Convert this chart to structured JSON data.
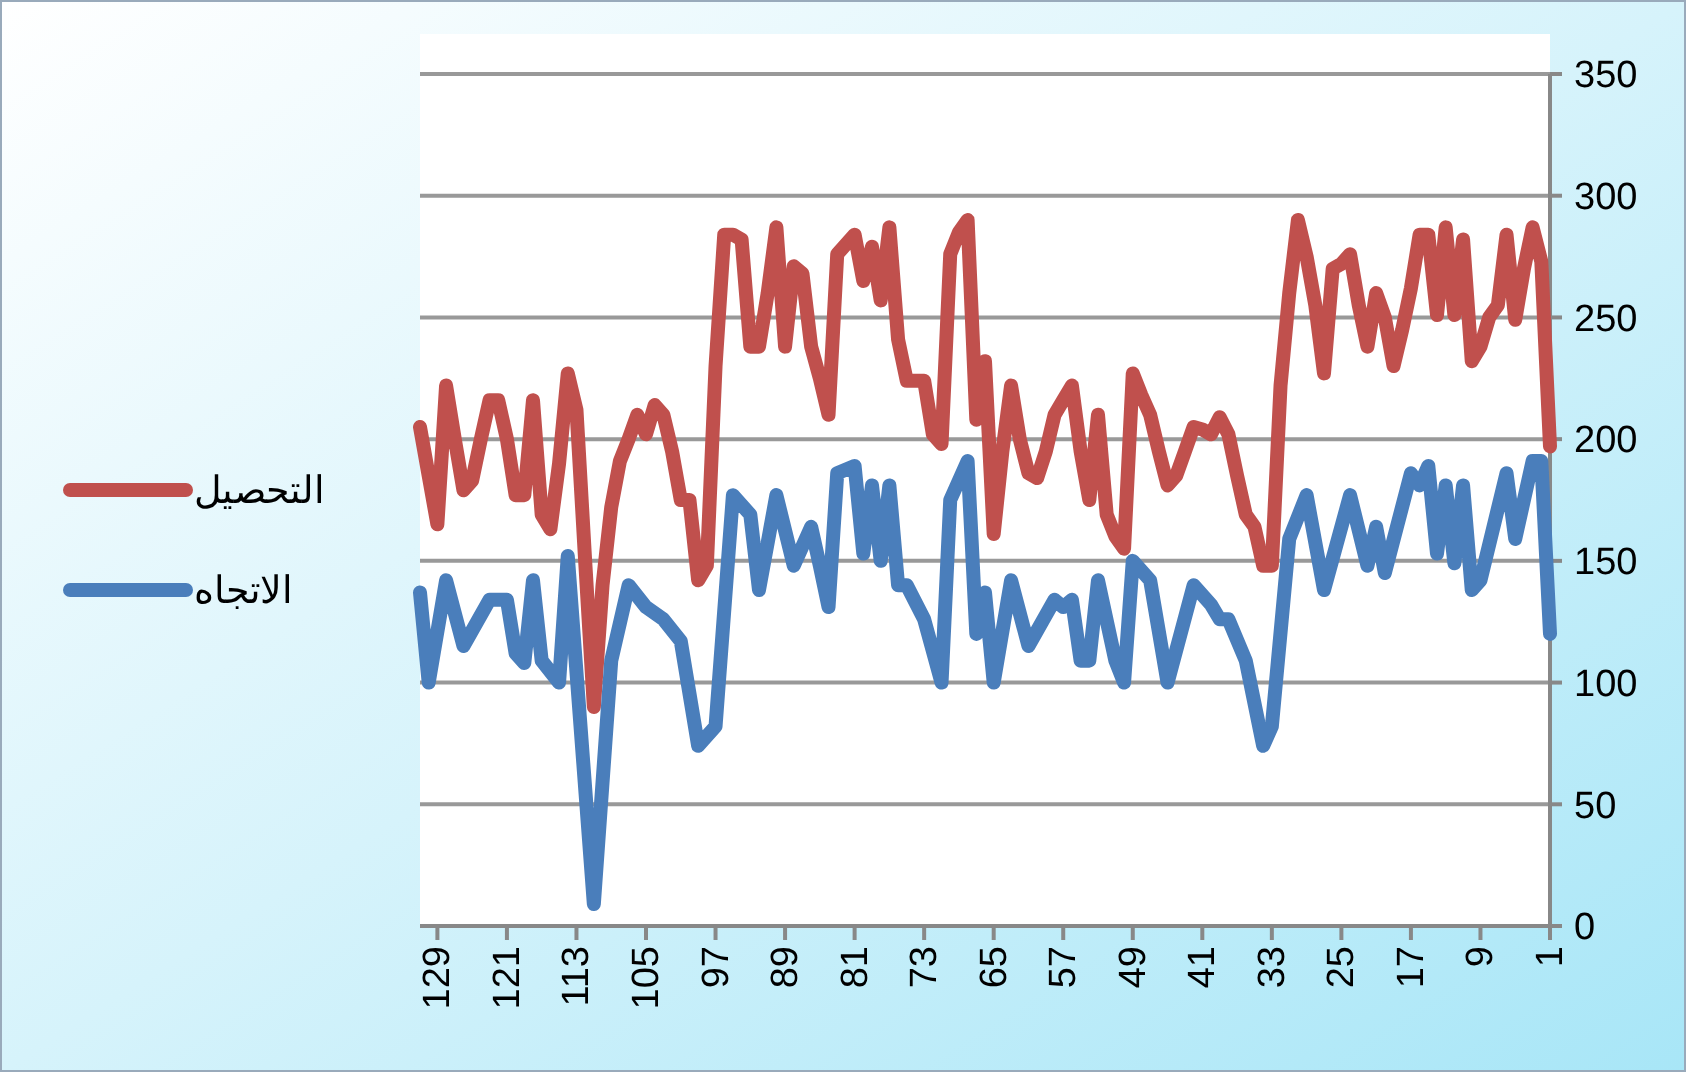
{
  "chart_data": {
    "type": "line",
    "xlim": [
      131,
      1
    ],
    "xticks": [
      129,
      121,
      113,
      105,
      97,
      89,
      81,
      73,
      65,
      57,
      49,
      41,
      33,
      25,
      17,
      9,
      1
    ],
    "ylim": [
      0,
      350
    ],
    "yticks": [
      0,
      50,
      100,
      150,
      200,
      250,
      300,
      350
    ],
    "grid": "y",
    "legend": "left",
    "marker": "none",
    "line_style": "solid",
    "series": [
      {
        "name": "التحصيل",
        "color": "#c0504d",
        "x": [
          131,
          130,
          129,
          128,
          127,
          126,
          125,
          124,
          123,
          122,
          121,
          120,
          119,
          118,
          117,
          116,
          115,
          114,
          113,
          112,
          111,
          110,
          109,
          108,
          107,
          106,
          105,
          104,
          103,
          102,
          101,
          100,
          99,
          98,
          97,
          96,
          95,
          94,
          93,
          92,
          91,
          90,
          89,
          88,
          87,
          86,
          85,
          84,
          83,
          82,
          81,
          80,
          79,
          78,
          77,
          76,
          75,
          74,
          73,
          72,
          71,
          70,
          69,
          68,
          67,
          66,
          65,
          64,
          63,
          62,
          61,
          60,
          59,
          58,
          57,
          56,
          55,
          54,
          53,
          52,
          51,
          50,
          49,
          48,
          47,
          46,
          45,
          44,
          43,
          42,
          41,
          40,
          39,
          38,
          37,
          36,
          35,
          34,
          33,
          32,
          31,
          30,
          29,
          28,
          27,
          26,
          25,
          24,
          23,
          22,
          21,
          20,
          19,
          18,
          17,
          16,
          15,
          14,
          13,
          12,
          11,
          10,
          9,
          8,
          7,
          6,
          5,
          4,
          3,
          2,
          1
        ],
        "values": [
          205,
          185,
          165,
          222,
          200,
          179,
          183,
          200,
          216,
          216,
          200,
          177,
          177,
          216,
          169,
          163,
          190,
          227,
          212,
          150,
          90,
          140,
          172,
          191,
          200,
          210,
          202,
          214,
          210,
          195,
          175,
          175,
          142,
          148,
          230,
          284,
          284,
          282,
          238,
          238,
          260,
          287,
          238,
          271,
          268,
          238,
          225,
          210,
          276,
          280,
          284,
          265,
          279,
          257,
          287,
          241,
          224,
          224,
          224,
          202,
          198,
          276,
          285,
          290,
          208,
          232,
          161,
          195,
          222,
          200,
          186,
          184,
          195,
          210,
          216,
          222,
          195,
          175,
          210,
          169,
          160,
          155,
          227,
          218,
          210,
          195,
          181,
          185,
          195,
          205,
          204,
          202,
          209,
          202,
          185,
          169,
          164,
          148,
          148,
          222,
          260,
          290,
          275,
          255,
          227,
          270,
          272,
          276,
          255,
          238,
          260,
          250,
          230,
          245,
          262,
          284,
          284,
          251,
          287,
          251,
          282,
          232,
          238,
          250,
          255,
          284,
          249,
          270,
          287,
          273,
          197
        ]
      },
      {
        "name": "الاتجاه",
        "color": "#4a7ebb",
        "x": [
          131,
          130,
          128,
          126,
          123,
          121,
          120,
          119,
          118,
          117,
          115,
          114,
          111,
          109,
          107,
          105,
          103,
          101,
          99,
          97,
          95,
          93,
          92,
          90,
          88,
          86,
          85,
          84,
          83,
          81,
          80,
          79,
          78,
          77,
          76,
          75,
          73,
          71,
          70,
          68,
          67,
          66,
          65,
          63,
          61,
          58,
          57,
          56,
          55,
          54,
          53,
          51,
          50,
          49,
          47,
          45,
          42,
          40,
          39,
          38,
          36,
          34,
          33,
          31,
          29,
          27,
          24,
          22,
          21,
          20,
          17,
          16,
          15,
          14,
          13,
          12,
          11,
          10,
          9,
          6,
          5,
          3,
          2,
          1
        ],
        "values": [
          137,
          100,
          142,
          115,
          134,
          134,
          112,
          108,
          142,
          109,
          100,
          152,
          9,
          109,
          140,
          131,
          126,
          117,
          74,
          82,
          177,
          169,
          138,
          177,
          148,
          164,
          148,
          131,
          186,
          189,
          153,
          181,
          150,
          181,
          140,
          140,
          126,
          100,
          175,
          191,
          120,
          137,
          100,
          142,
          115,
          134,
          131,
          134,
          109,
          109,
          142,
          109,
          100,
          150,
          142,
          100,
          140,
          132,
          126,
          126,
          109,
          74,
          82,
          159,
          177,
          138,
          177,
          148,
          164,
          145,
          186,
          181,
          189,
          153,
          181,
          149,
          181,
          138,
          142,
          186,
          159,
          191,
          191,
          120
        ]
      }
    ]
  }
}
